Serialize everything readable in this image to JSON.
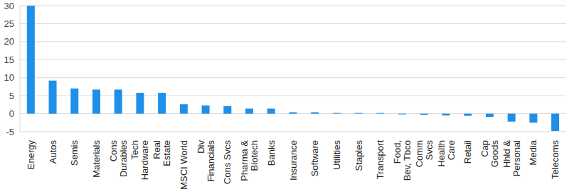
{
  "chart_data": {
    "type": "bar",
    "categories": [
      "Energy",
      "Autos",
      "Semis",
      "Materials",
      "Cons\nDurables",
      "Tech\nHardware",
      "Real\nEstate",
      "MSCI World",
      "Div\nFinancials",
      "Cons Svcs",
      "Pharma &\nBiotech",
      "Banks",
      "Insurance",
      "Software",
      "Utilities",
      "Staples",
      "Transport",
      "Food,\nBev, Tbco",
      "Comm\nSvcs",
      "Health\nCare",
      "Retail",
      "Cap\nGoods",
      "Hhld &\nPersonal",
      "Media",
      "Telecoms"
    ],
    "values": [
      30,
      9.2,
      7,
      6.7,
      6.7,
      5.8,
      5.8,
      2.6,
      2.3,
      2.1,
      1.4,
      1.4,
      0.4,
      0.4,
      0.2,
      0.2,
      0.2,
      -0.2,
      -0.3,
      -0.5,
      -0.6,
      -0.9,
      -2.2,
      -2.5,
      -4.8
    ],
    "color": "#1e90ea",
    "ylim": [
      -5,
      30
    ],
    "yticks": [
      -5,
      0,
      5,
      10,
      15,
      20,
      25,
      30
    ],
    "grid": true
  }
}
